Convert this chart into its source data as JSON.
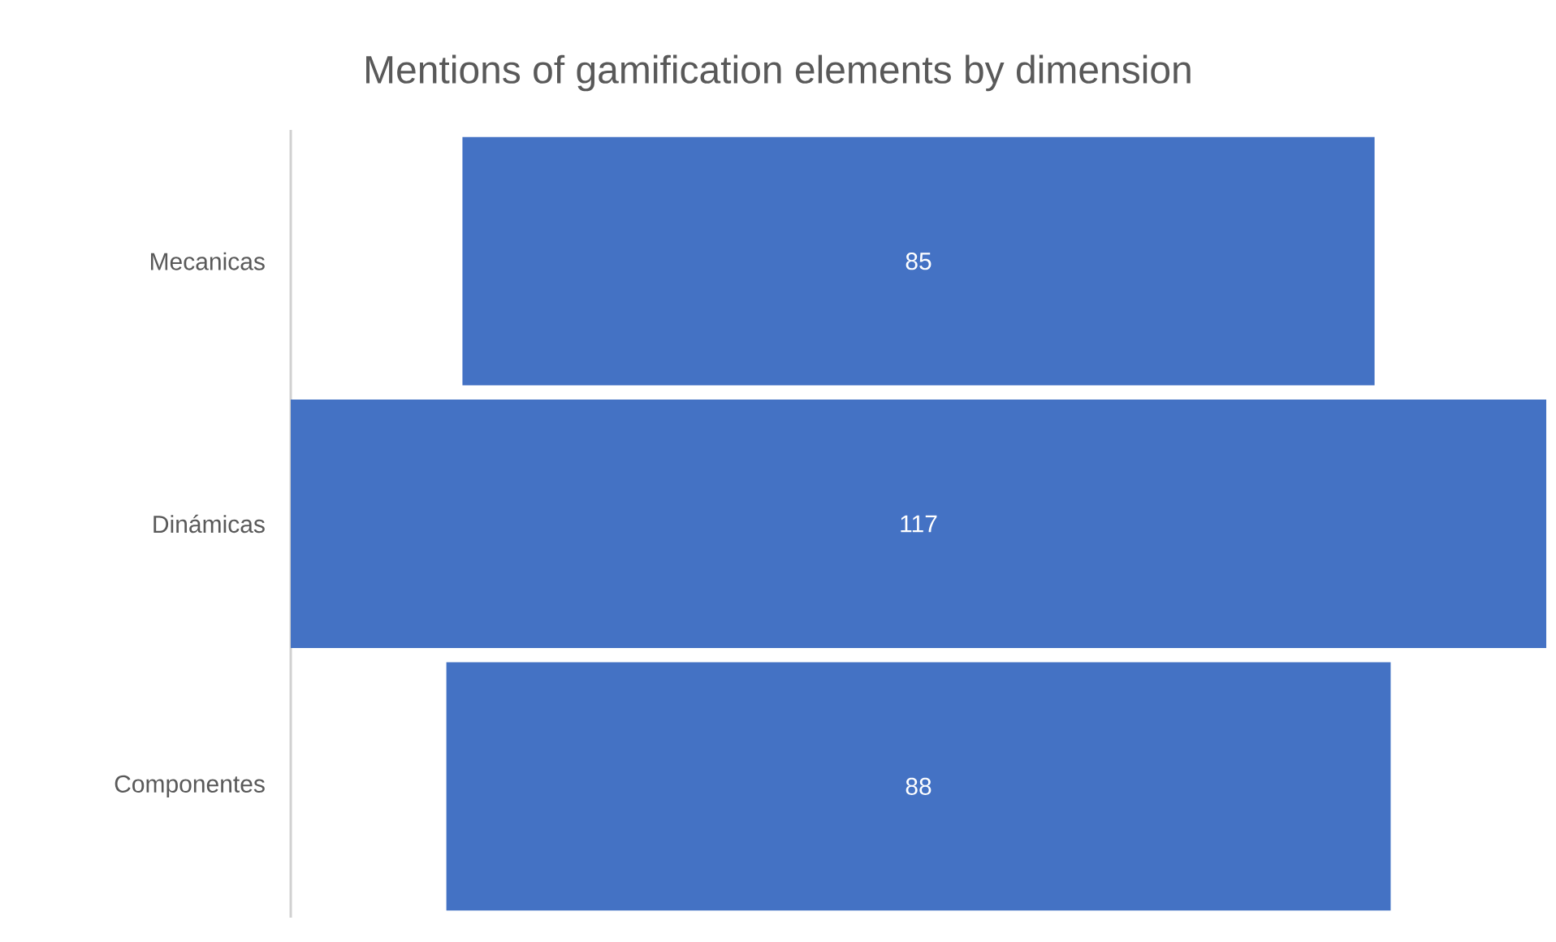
{
  "chart_data": {
    "type": "other",
    "title": "Mentions of gamification elements by dimension",
    "categories": [
      "Mecanicas",
      "Dinámicas",
      "Componentes"
    ],
    "values": [
      85,
      117,
      88
    ],
    "color": "#4472c4",
    "data_labels": true
  }
}
